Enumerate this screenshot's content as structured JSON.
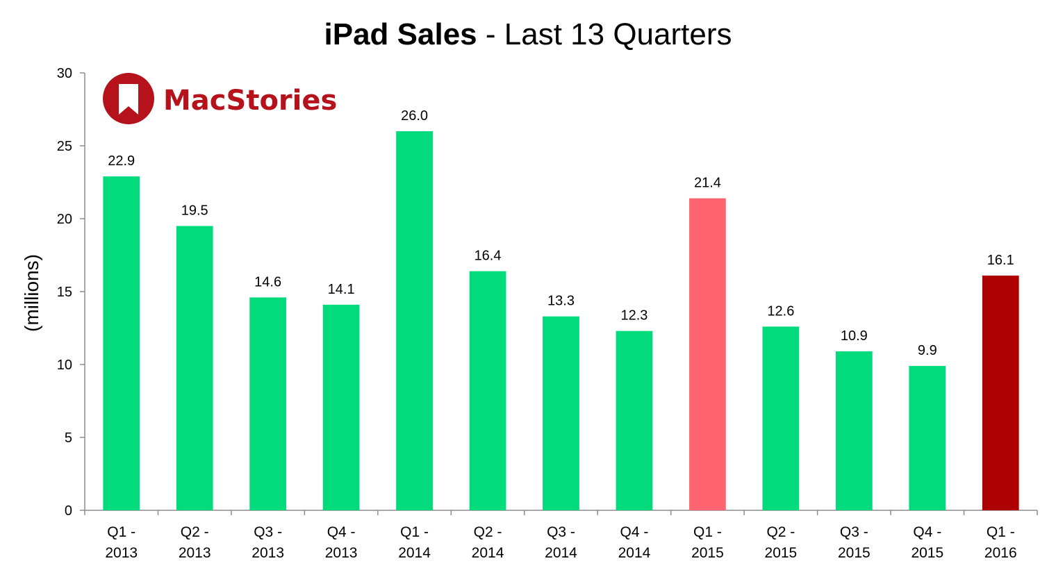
{
  "chart_data": {
    "type": "bar",
    "title": "iPad Sales - Last 13 Quarters",
    "title_bold": "iPad Sales",
    "title_rest": " - Last 13 Quarters",
    "xlabel": "",
    "ylabel": "(millions)",
    "ylim": [
      0,
      30
    ],
    "yticks": [
      0,
      5,
      10,
      15,
      20,
      25,
      30
    ],
    "grid": false,
    "categories": [
      [
        "Q1 -",
        "2013"
      ],
      [
        "Q2 -",
        "2013"
      ],
      [
        "Q3 -",
        "2013"
      ],
      [
        "Q4 -",
        "2013"
      ],
      [
        "Q1 -",
        "2014"
      ],
      [
        "Q2 -",
        "2014"
      ],
      [
        "Q3 -",
        "2014"
      ],
      [
        "Q4 -",
        "2014"
      ],
      [
        "Q1 -",
        "2015"
      ],
      [
        "Q2 -",
        "2015"
      ],
      [
        "Q3 -",
        "2015"
      ],
      [
        "Q4 -",
        "2015"
      ],
      [
        "Q1 -",
        "2016"
      ]
    ],
    "values": [
      22.9,
      19.5,
      14.6,
      14.1,
      26.0,
      16.4,
      13.3,
      12.3,
      21.4,
      12.6,
      10.9,
      9.9,
      16.1
    ],
    "value_labels": [
      "22.9",
      "19.5",
      "14.6",
      "14.1",
      "26.0",
      "16.4",
      "13.3",
      "12.3",
      "21.4",
      "12.6",
      "10.9",
      "9.9",
      "16.1"
    ],
    "bar_colors": [
      "#02db7c",
      "#02db7c",
      "#02db7c",
      "#02db7c",
      "#02db7c",
      "#02db7c",
      "#02db7c",
      "#02db7c",
      "#ff6470",
      "#02db7c",
      "#02db7c",
      "#02db7c",
      "#ad0000"
    ]
  },
  "logo": {
    "text": "MacStories",
    "color": "#b5121b",
    "icon": "bookmark-icon"
  }
}
